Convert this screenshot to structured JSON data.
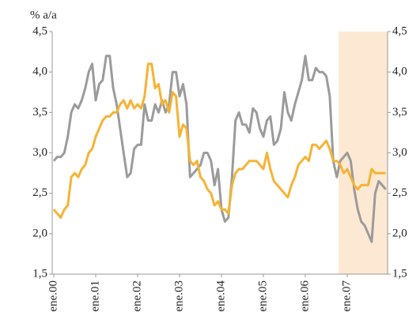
{
  "chart_data": {
    "type": "line",
    "y_label": "% a/a",
    "categories": [
      "ene.00",
      null,
      null,
      null,
      null,
      null,
      null,
      null,
      null,
      null,
      null,
      null,
      "ene.01",
      null,
      null,
      null,
      null,
      null,
      null,
      null,
      null,
      null,
      null,
      null,
      "ene.02",
      null,
      null,
      null,
      null,
      null,
      null,
      null,
      null,
      null,
      null,
      null,
      "ene.03",
      null,
      null,
      null,
      null,
      null,
      null,
      null,
      null,
      null,
      null,
      null,
      "ene.04",
      null,
      null,
      null,
      null,
      null,
      null,
      null,
      null,
      null,
      null,
      null,
      "ene.05",
      null,
      null,
      null,
      null,
      null,
      null,
      null,
      null,
      null,
      null,
      null,
      "ene.06",
      null,
      null,
      null,
      null,
      null,
      null,
      null,
      null,
      null,
      null,
      null,
      "ene.07",
      null,
      null,
      null,
      null,
      null,
      null,
      null,
      null,
      null,
      null,
      null
    ],
    "series": [
      {
        "color": "#9b9b9b",
        "values": [
          2.9,
          2.95,
          2.95,
          3.0,
          3.2,
          3.5,
          3.6,
          3.55,
          3.65,
          3.8,
          4.0,
          4.1,
          3.65,
          3.85,
          3.9,
          4.2,
          4.2,
          3.8,
          3.6,
          3.3,
          3.0,
          2.7,
          2.75,
          3.05,
          3.1,
          3.1,
          3.6,
          3.4,
          3.4,
          3.6,
          3.5,
          3.65,
          3.5,
          3.6,
          4.0,
          4.0,
          3.7,
          3.85,
          3.6,
          2.7,
          2.75,
          2.8,
          2.85,
          3.0,
          3.0,
          2.9,
          2.6,
          2.8,
          2.3,
          2.15,
          2.2,
          2.7,
          3.4,
          3.5,
          3.35,
          3.35,
          3.25,
          3.55,
          3.5,
          3.3,
          3.2,
          3.4,
          3.45,
          3.1,
          3.15,
          3.3,
          3.75,
          3.5,
          3.4,
          3.6,
          3.75,
          3.9,
          4.2,
          3.9,
          3.9,
          4.05,
          4.0,
          4.0,
          3.95,
          3.7,
          2.9,
          2.7,
          2.9,
          2.95,
          3.0,
          2.9,
          2.55,
          2.3,
          2.15,
          2.1,
          2.0,
          1.9,
          2.5,
          2.65,
          2.6,
          2.55
        ]
      },
      {
        "color": "#f5b335",
        "values": [
          2.3,
          2.25,
          2.2,
          2.3,
          2.35,
          2.7,
          2.75,
          2.7,
          2.8,
          2.85,
          3.0,
          3.05,
          3.2,
          3.3,
          3.4,
          3.45,
          3.45,
          3.5,
          3.5,
          3.6,
          3.65,
          3.55,
          3.65,
          3.55,
          3.6,
          3.55,
          3.7,
          4.1,
          4.1,
          3.8,
          3.85,
          3.6,
          3.65,
          3.5,
          3.75,
          3.7,
          3.2,
          3.35,
          3.3,
          2.9,
          2.85,
          2.9,
          2.7,
          2.65,
          2.55,
          2.5,
          2.35,
          2.4,
          2.3,
          2.3,
          2.25,
          2.6,
          2.75,
          2.8,
          2.8,
          2.85,
          2.9,
          2.9,
          2.9,
          2.85,
          2.8,
          3.0,
          2.8,
          2.65,
          2.6,
          2.55,
          2.5,
          2.45,
          2.6,
          2.7,
          2.85,
          2.9,
          2.95,
          2.9,
          3.1,
          3.1,
          3.05,
          3.1,
          3.15,
          3.05,
          2.9,
          2.9,
          2.85,
          2.75,
          2.8,
          2.7,
          2.6,
          2.55,
          2.6,
          2.6,
          2.6,
          2.8,
          2.75,
          2.75,
          2.75,
          2.75
        ]
      }
    ],
    "ylim": [
      1.5,
      4.5
    ],
    "yticks": [
      {
        "value": 1.5,
        "label": "1,5"
      },
      {
        "value": 2,
        "label": "2,0"
      },
      {
        "value": 2.5,
        "label": "2,5"
      },
      {
        "value": 3,
        "label": "3,0"
      },
      {
        "value": 3.5,
        "label": "3,5"
      },
      {
        "value": 4,
        "label": "4,0"
      },
      {
        "value": 4.5,
        "label": "4,5"
      }
    ],
    "y2lim": [
      1.5,
      4.5
    ],
    "y2ticks": [
      {
        "value": 1.5,
        "label": "1,5"
      },
      {
        "value": 2,
        "label": "2,0"
      },
      {
        "value": 2.5,
        "label": "2,5"
      },
      {
        "value": 3,
        "label": "3,0"
      },
      {
        "value": 3.5,
        "label": "3,5"
      },
      {
        "value": 4,
        "label": "4,0"
      },
      {
        "value": 4.5,
        "label": "4,5"
      }
    ],
    "grid": false
  }
}
